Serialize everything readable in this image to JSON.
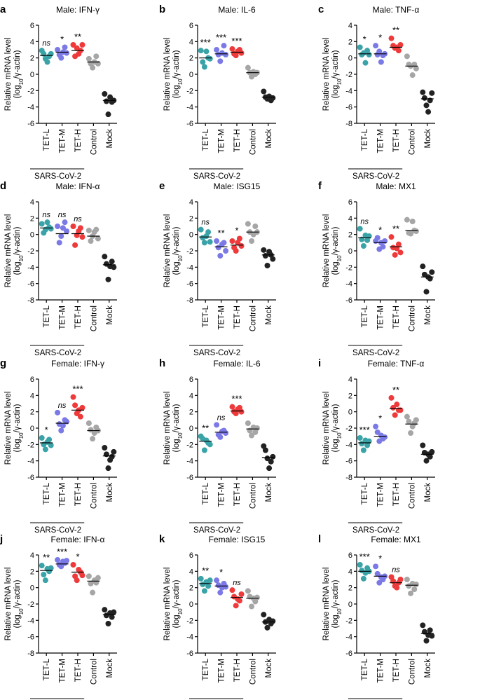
{
  "figure": {
    "y_label_line1": "Relative mRNA level",
    "y_label_line2_pre": "(log",
    "y_label_line2_sub": "10",
    "y_label_line2_post": "/γ-actin)",
    "group_label": "SARS-CoV-2",
    "categories": [
      "TET-L",
      "TET-M",
      "TET-H",
      "Control",
      "Mock"
    ],
    "colors": [
      "#3aa3a8",
      "#7b79e6",
      "#ee3a3a",
      "#a6a6a6",
      "#222222"
    ]
  },
  "chart_data": [
    {
      "panel": "a",
      "title": "Male: IFN-γ",
      "type": "scatter",
      "ylim": [
        -6,
        6
      ],
      "yticks": [
        -6,
        -4,
        -2,
        0,
        2,
        4,
        6
      ],
      "significance": [
        "ns",
        "*",
        "**",
        "",
        ""
      ],
      "means": [
        2.3,
        2.7,
        2.9,
        1.5,
        -3.2
      ],
      "series": [
        [
          2.9,
          2.5,
          1.9,
          1.5,
          2.2,
          2.5
        ],
        [
          3.0,
          2.4,
          2.0,
          2.7,
          3.3,
          2.6
        ],
        [
          3.6,
          2.2,
          3.2,
          2.5,
          2.9,
          3.6
        ],
        [
          1.9,
          1.3,
          0.8,
          1.5,
          2.2,
          1.3
        ],
        [
          -2.4,
          -3.3,
          -4.9,
          -2.8,
          -3.4,
          -3.2
        ]
      ]
    },
    {
      "panel": "b",
      "title": "Male: IL-6",
      "type": "scatter",
      "ylim": [
        -6,
        6
      ],
      "yticks": [
        -6,
        -4,
        -2,
        0,
        2,
        4,
        6
      ],
      "significance": [
        "***",
        "***",
        "***",
        "",
        ""
      ],
      "means": [
        2.0,
        2.5,
        2.7,
        0.2,
        -2.8
      ],
      "series": [
        [
          2.9,
          1.5,
          0.9,
          2.8,
          2.0,
          1.9
        ],
        [
          3.0,
          2.4,
          1.6,
          2.6,
          3.5,
          2.4
        ],
        [
          3.1,
          2.5,
          2.3,
          2.8,
          3.0,
          2.6
        ],
        [
          0.8,
          0.2,
          -0.3,
          0.3,
          0.0,
          0.2
        ],
        [
          -2.1,
          -2.8,
          -3.0,
          -2.7,
          -3.2,
          -2.9
        ]
      ]
    },
    {
      "panel": "c",
      "title": "Male: TNF-α",
      "type": "scatter",
      "ylim": [
        -8,
        4
      ],
      "yticks": [
        -8,
        -6,
        -4,
        -2,
        0,
        2,
        4
      ],
      "significance": [
        "*",
        "*",
        "**",
        "",
        ""
      ],
      "means": [
        0.5,
        0.5,
        1.3,
        -1.0,
        -5.0
      ],
      "series": [
        [
          1.3,
          0.4,
          0.6,
          -0.6,
          0.9,
          0.4
        ],
        [
          1.5,
          0.4,
          0.8,
          -0.5,
          0.3,
          0.5
        ],
        [
          2.4,
          1.5,
          1.2,
          1.3,
          0.9,
          1.6
        ],
        [
          0.2,
          -0.8,
          -1.0,
          -2.1,
          -0.8,
          -1.3
        ],
        [
          -4.2,
          -4.9,
          -5.8,
          -6.6,
          -5.2,
          -4.3
        ]
      ]
    },
    {
      "panel": "d",
      "title": "Male: IFN-α",
      "type": "scatter",
      "ylim": [
        -8,
        4
      ],
      "yticks": [
        -8,
        -6,
        -4,
        -2,
        0,
        2,
        4
      ],
      "significance": [
        "ns",
        "ns",
        "ns",
        "",
        ""
      ],
      "means": [
        0.8,
        0.1,
        0.1,
        -0.2,
        -3.7
      ],
      "series": [
        [
          1.3,
          0.2,
          0.6,
          1.5,
          0.9,
          0.7
        ],
        [
          1.0,
          -1.0,
          -0.2,
          0.8,
          1.5,
          0.4
        ],
        [
          1.0,
          -1.3,
          -0.1,
          0.4,
          0.8,
          -0.3
        ],
        [
          0.5,
          -0.8,
          -0.2,
          0.3,
          0.6,
          -0.5
        ],
        [
          -2.7,
          -3.6,
          -5.5,
          -3.9,
          -3.3,
          -4.0
        ]
      ]
    },
    {
      "panel": "e",
      "title": "Male: ISG15",
      "type": "scatter",
      "ylim": [
        -8,
        4
      ],
      "yticks": [
        -8,
        -6,
        -4,
        -2,
        0,
        2,
        4
      ],
      "significance": [
        "ns",
        "**",
        "*",
        "",
        ""
      ],
      "means": [
        -0.3,
        -1.5,
        -1.3,
        0.3,
        -2.5
      ],
      "series": [
        [
          0.6,
          -0.4,
          -1.0,
          -0.2,
          0.3,
          -0.9
        ],
        [
          -0.8,
          -1.6,
          -2.6,
          -1.2,
          -1.0,
          -2.0
        ],
        [
          -0.8,
          -1.6,
          -2.0,
          -1.0,
          -0.5,
          -1.4
        ],
        [
          1.3,
          0.3,
          -0.8,
          0.0,
          1.0,
          0.3
        ],
        [
          -1.9,
          -2.6,
          -3.8,
          -2.1,
          -2.5,
          -3.0
        ]
      ]
    },
    {
      "panel": "f",
      "title": "Male: MX1",
      "type": "scatter",
      "ylim": [
        -6,
        6
      ],
      "yticks": [
        -6,
        -4,
        -2,
        0,
        2,
        4,
        6
      ],
      "significance": [
        "ns",
        "*",
        "**",
        "",
        ""
      ],
      "means": [
        1.6,
        1.0,
        0.5,
        2.5,
        -3.2
      ],
      "series": [
        [
          2.7,
          1.4,
          0.6,
          1.9,
          1.3,
          1.8
        ],
        [
          1.2,
          1.6,
          0.2,
          1.0,
          0.5,
          1.2
        ],
        [
          1.7,
          0.4,
          -0.5,
          0.3,
          0.8,
          -0.2
        ],
        [
          3.8,
          2.2,
          2.1,
          3.6,
          2.5,
          2.4
        ],
        [
          -1.9,
          -2.9,
          -5.0,
          -3.2,
          -3.4,
          -2.6
        ]
      ]
    },
    {
      "panel": "g",
      "title": "Female: IFN-γ",
      "type": "scatter",
      "ylim": [
        -6,
        6
      ],
      "yticks": [
        -6,
        -4,
        -2,
        0,
        2,
        4,
        6
      ],
      "significance": [
        "*",
        "ns",
        "***",
        "",
        ""
      ],
      "means": [
        -1.8,
        0.6,
        2.2,
        -0.3,
        -3.4
      ],
      "series": [
        [
          -1.2,
          -2.0,
          -2.6,
          -1.7,
          -1.4,
          -2.1
        ],
        [
          1.9,
          0.5,
          -0.3,
          0.3,
          1.0,
          0.8
        ],
        [
          3.8,
          2.8,
          1.8,
          2.2,
          1.4,
          2.5
        ],
        [
          0.6,
          -0.2,
          -1.3,
          -0.6,
          0.1,
          -0.3
        ],
        [
          -2.4,
          -3.2,
          -4.9,
          -3.9,
          -3.5,
          -2.9
        ]
      ]
    },
    {
      "panel": "h",
      "title": "Female: IL-6",
      "type": "scatter",
      "ylim": [
        -6,
        6
      ],
      "yticks": [
        -6,
        -4,
        -2,
        0,
        2,
        4,
        6
      ],
      "significance": [
        "**",
        "ns",
        "***",
        "",
        ""
      ],
      "means": [
        -1.6,
        -0.5,
        2.1,
        -0.1,
        -3.6
      ],
      "series": [
        [
          -1.0,
          -1.3,
          -2.7,
          -1.5,
          -1.8,
          -2.0
        ],
        [
          0.4,
          -0.8,
          -1.1,
          -0.4,
          -0.3,
          -0.6
        ],
        [
          2.6,
          2.0,
          1.8,
          2.3,
          2.5,
          2.0
        ],
        [
          0.6,
          -0.3,
          -0.9,
          0.1,
          -0.5,
          0.0
        ],
        [
          -2.2,
          -2.7,
          -3.7,
          -4.9,
          -4.1,
          -3.5
        ]
      ]
    },
    {
      "panel": "i",
      "title": "Female: TNF-α",
      "type": "scatter",
      "ylim": [
        -8,
        4
      ],
      "yticks": [
        -8,
        -6,
        -4,
        -2,
        0,
        2,
        4
      ],
      "significance": [
        "***",
        "*",
        "**",
        "",
        ""
      ],
      "means": [
        -3.8,
        -3.0,
        0.4,
        -1.5,
        -5.2
      ],
      "series": [
        [
          -3.2,
          -3.9,
          -4.7,
          -3.5,
          -4.1,
          -3.6
        ],
        [
          -1.8,
          -2.5,
          -3.6,
          -2.9,
          -3.3,
          -3.1
        ],
        [
          1.7,
          0.5,
          -0.4,
          0.9,
          0.2,
          0.2
        ],
        [
          -0.6,
          -1.2,
          -2.6,
          -1.8,
          -1.4,
          -1.0
        ],
        [
          -4.1,
          -5.0,
          -6.0,
          -5.2,
          -5.5,
          -4.9
        ]
      ]
    },
    {
      "panel": "j",
      "title": "Female: IFN-α",
      "type": "scatter",
      "ylim": [
        -8,
        4
      ],
      "yticks": [
        -8,
        -6,
        -4,
        -2,
        0,
        2,
        4
      ],
      "significance": [
        "**",
        "***",
        "*",
        "",
        ""
      ],
      "means": [
        2.1,
        2.9,
        1.9,
        0.8,
        -3.3
      ],
      "series": [
        [
          2.7,
          1.6,
          0.9,
          2.3,
          2.0,
          2.4
        ],
        [
          3.4,
          2.8,
          2.6,
          3.2,
          3.0,
          3.3
        ],
        [
          2.8,
          1.4,
          0.9,
          2.2,
          1.9,
          1.5
        ],
        [
          1.4,
          0.5,
          -0.6,
          0.9,
          0.6,
          1.2
        ],
        [
          -2.7,
          -3.4,
          -4.4,
          -3.1,
          -3.6,
          -3.0
        ]
      ]
    },
    {
      "panel": "k",
      "title": "Female: ISG15",
      "type": "scatter",
      "ylim": [
        -6,
        6
      ],
      "yticks": [
        -6,
        -4,
        -2,
        0,
        2,
        4,
        6
      ],
      "significance": [
        "**",
        "*",
        "ns",
        "",
        ""
      ],
      "means": [
        2.5,
        2.2,
        0.8,
        0.7,
        -2.2
      ],
      "series": [
        [
          3.1,
          2.4,
          1.6,
          2.7,
          2.2,
          2.9
        ],
        [
          2.9,
          2.3,
          1.4,
          2.0,
          2.5,
          2.1
        ],
        [
          1.7,
          0.9,
          -0.2,
          0.6,
          0.4,
          1.2
        ],
        [
          1.6,
          0.9,
          -0.3,
          0.7,
          0.3,
          0.8
        ],
        [
          -1.3,
          -2.2,
          -2.9,
          -1.9,
          -2.4,
          -2.1
        ]
      ]
    },
    {
      "panel": "l",
      "title": "Female: MX1",
      "type": "scatter",
      "ylim": [
        -6,
        6
      ],
      "yticks": [
        -6,
        -4,
        -2,
        0,
        2,
        4,
        6
      ],
      "significance": [
        "***",
        "*",
        "ns",
        "",
        ""
      ],
      "means": [
        4.0,
        3.4,
        2.6,
        2.3,
        -3.6
      ],
      "series": [
        [
          4.8,
          4.1,
          3.1,
          3.8,
          4.4,
          4.0
        ],
        [
          4.6,
          3.7,
          2.6,
          3.3,
          3.0,
          3.4
        ],
        [
          3.3,
          2.8,
          2.2,
          2.0,
          2.6,
          3.0
        ],
        [
          3.0,
          2.2,
          1.3,
          2.5,
          1.8,
          2.4
        ],
        [
          -2.6,
          -3.4,
          -4.5,
          -3.8,
          -3.2,
          -3.9
        ]
      ]
    }
  ]
}
